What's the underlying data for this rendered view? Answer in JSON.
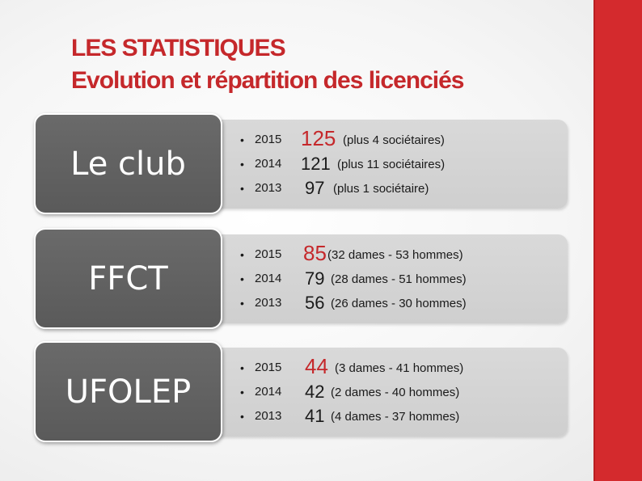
{
  "title": {
    "line1": "LES STATISTIQUES",
    "line2": "Evolution et répartition des licenciés"
  },
  "sections": [
    {
      "category": "Le club",
      "rows": [
        {
          "bullet": "•",
          "year": "2015",
          "value": "125",
          "note": "(plus 4 sociétaires)"
        },
        {
          "bullet": "•",
          "year": "2014",
          "value": "121",
          "note": "(plus 11 sociétaires)"
        },
        {
          "bullet": "•",
          "year": "2013",
          "value": "97",
          "note": "(plus 1 sociétaire)"
        }
      ]
    },
    {
      "category": "FFCT",
      "rows": [
        {
          "bullet": "•",
          "year": "2015",
          "value": "85",
          "note": "(32 dames - 53 hommes)"
        },
        {
          "bullet": "•",
          "year": "2014",
          "value": "79",
          "note": "(28 dames - 51 hommes)"
        },
        {
          "bullet": "•",
          "year": "2013",
          "value": "56",
          "note": "(26 dames - 30 hommes)"
        }
      ]
    },
    {
      "category": "UFOLEP",
      "rows": [
        {
          "bullet": "•",
          "year": "2015",
          "value": "44",
          "note": "(3 dames - 41 hommes)"
        },
        {
          "bullet": "•",
          "year": "2014",
          "value": "42",
          "note": "(2 dames - 40 hommes)"
        },
        {
          "bullet": "•",
          "year": "2013",
          "value": "41",
          "note": "(4 dames - 37 hommes)"
        }
      ]
    }
  ],
  "colors": {
    "accent": "#c5282b",
    "sidebar": "#d42a2d",
    "category_box": "#5f5f5f",
    "detail_box": "#d6d6d6"
  }
}
